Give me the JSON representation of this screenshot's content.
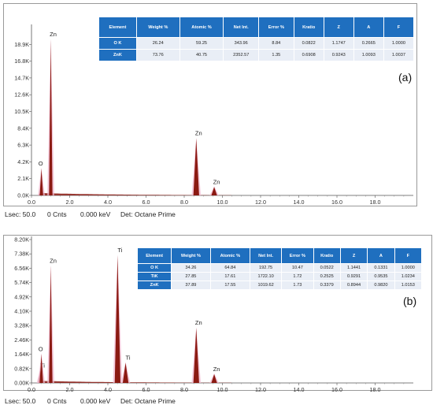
{
  "chart_data": [
    {
      "type": "line",
      "label": "(a)",
      "title": "",
      "xlabel": "",
      "ylabel": "",
      "xlim": [
        0,
        20
      ],
      "ylim": [
        0,
        20000
      ],
      "x_ticks": [
        "0.0",
        "2.0",
        "4.0",
        "6.0",
        "8.0",
        "10.0",
        "12.0",
        "14.0",
        "16.0",
        "18.0"
      ],
      "y_ticks": [
        "0.0K",
        "2.1K",
        "4.2K",
        "6.3K",
        "8.4K",
        "10.5K",
        "12.6K",
        "14.7K",
        "16.8K",
        "18.9K"
      ],
      "peaks": [
        {
          "label": "O",
          "energy_kev": 0.52,
          "counts": 3200
        },
        {
          "label": "Zn",
          "energy_kev": 1.01,
          "counts": 18600
        },
        {
          "label": "Zn",
          "energy_kev": 8.63,
          "counts": 6800
        },
        {
          "label": "Zn",
          "energy_kev": 9.57,
          "counts": 1000
        }
      ],
      "table": {
        "headers": [
          "Element",
          "Weight %",
          "Atomic %",
          "Net Int.",
          "Error %",
          "Kratio",
          "Z",
          "A",
          "F"
        ],
        "rows": [
          [
            "O K",
            "26.24",
            "59.25",
            "343.96",
            "8.84",
            "0.0822",
            "1.1747",
            "0.2665",
            "1.0000"
          ],
          [
            "ZnK",
            "73.76",
            "40.75",
            "2352.57",
            "1.35",
            "0.6908",
            "0.9243",
            "1.0093",
            "1.0037"
          ]
        ]
      },
      "status": {
        "lsec": "Lsec: 50.0",
        "cnts": "0 Cnts",
        "kev": "0.000 keV",
        "det": "Det: Octane Prime"
      }
    },
    {
      "type": "line",
      "label": "(b)",
      "title": "",
      "xlabel": "",
      "ylabel": "",
      "xlim": [
        0,
        20
      ],
      "ylim": [
        0,
        8200
      ],
      "x_ticks": [
        "0.0",
        "2.0",
        "4.0",
        "6.0",
        "8.0",
        "10.0",
        "12.0",
        "14.0",
        "16.0",
        "18.0"
      ],
      "y_ticks": [
        "0.00K",
        "0.82K",
        "1.64K",
        "2.46K",
        "3.28K",
        "4.10K",
        "4.92K",
        "5.74K",
        "6.56K",
        "7.38K",
        "8.20K"
      ],
      "peaks": [
        {
          "label": "Ti",
          "energy_kev": 0.45,
          "counts": 700
        },
        {
          "label": "O",
          "energy_kev": 0.52,
          "counts": 1650
        },
        {
          "label": "Zn",
          "energy_kev": 1.01,
          "counts": 6700
        },
        {
          "label": "Ti",
          "energy_kev": 4.51,
          "counts": 7300
        },
        {
          "label": "Ti",
          "energy_kev": 4.93,
          "counts": 1150
        },
        {
          "label": "Zn",
          "energy_kev": 8.63,
          "counts": 3150
        },
        {
          "label": "Zn",
          "energy_kev": 9.57,
          "counts": 500
        }
      ],
      "table": {
        "headers": [
          "Element",
          "Weight %",
          "Atomic %",
          "Net Int.",
          "Error %",
          "Kratio",
          "Z",
          "A",
          "F"
        ],
        "rows": [
          [
            "O K",
            "34.26",
            "64.84",
            "192.75",
            "10.47",
            "0.0522",
            "1.1441",
            "0.1331",
            "1.0000"
          ],
          [
            "TiK",
            "27.85",
            "17.61",
            "1722.10",
            "1.72",
            "0.2525",
            "0.9291",
            "0.9535",
            "1.0234"
          ],
          [
            "ZnK",
            "37.89",
            "17.55",
            "1019.62",
            "1.73",
            "0.3379",
            "0.8944",
            "0.9820",
            "1.0153"
          ]
        ]
      },
      "status": {
        "lsec": "Lsec: 50.0",
        "cnts": "0 Cnts",
        "kev": "0.000 keV",
        "det": "Det: Octane Prime"
      }
    }
  ],
  "colors": {
    "spectrum_fill": "#8b1a12",
    "spectrum_halo": "#f0b8cf",
    "table_header": "#1f6fbf",
    "table_cell": "#e9eef6"
  }
}
